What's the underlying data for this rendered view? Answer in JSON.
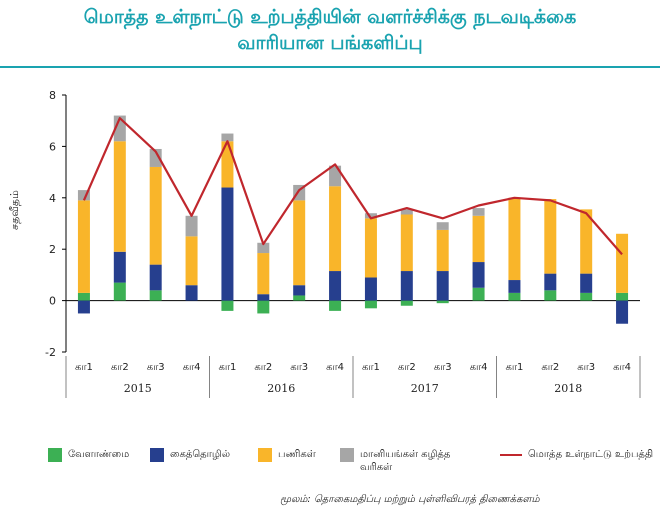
{
  "title_lines": [
    "மொத்த உள்நாட்டு உற்பத்தியின் வளர்ச்சிக்கு நடவடிக்கை",
    "வாரியான பங்களிப்பு"
  ],
  "source": "மூலம்: தொகைமதிப்பு மற்றும் புள்ளிவிபரத் திணைக்களம்",
  "colors": {
    "agriculture": "#3cb054",
    "industry": "#263f8e",
    "services": "#f9b52a",
    "taxes": "#a6a6a6",
    "gdp": "#c0272d",
    "title": "#1aa3b0"
  },
  "chart_data": {
    "type": "bar",
    "stacked": true,
    "ylabel": "சதவீதம்",
    "ylim": [
      -2,
      8
    ],
    "yticks": [
      "-2",
      "0",
      "2",
      "4",
      "6",
      "8"
    ],
    "categories": [
      "கா1",
      "கா2",
      "கா3",
      "கா4",
      "கா1",
      "கா2",
      "கா3",
      "கா4",
      "கா1",
      "கா2",
      "கா3",
      "கா4",
      "கா1",
      "கா2",
      "கா3",
      "கா4"
    ],
    "years": [
      "2015",
      "2016",
      "2017",
      "2018"
    ],
    "series": [
      {
        "name": "வேளாண்மை",
        "key": "agriculture",
        "values": [
          0.3,
          0.7,
          0.4,
          0.0,
          -0.4,
          -0.5,
          0.2,
          -0.4,
          -0.3,
          -0.2,
          -0.1,
          0.5,
          0.3,
          0.4,
          0.3,
          0.3
        ]
      },
      {
        "name": "கைத்தொழில்",
        "key": "industry",
        "values": [
          -0.5,
          1.2,
          1.0,
          0.6,
          4.4,
          0.25,
          0.4,
          1.15,
          0.9,
          1.15,
          1.15,
          1.0,
          0.5,
          0.65,
          0.75,
          -0.9
        ]
      },
      {
        "name": "பணிகள்",
        "key": "services",
        "values": [
          3.6,
          4.3,
          3.8,
          1.9,
          1.8,
          1.6,
          3.3,
          3.3,
          2.3,
          2.2,
          1.6,
          1.8,
          3.2,
          2.9,
          2.5,
          2.3
        ]
      },
      {
        "name": "மானியங்கள் கழித்த வரிகள்",
        "key": "taxes",
        "values": [
          0.4,
          1.0,
          0.7,
          0.8,
          0.3,
          0.4,
          0.6,
          0.8,
          0.2,
          0.2,
          0.3,
          0.3,
          0.0,
          0.0,
          0.0,
          0.0
        ]
      }
    ],
    "line": {
      "name": "மொத்த உள்நாட்டு உற்பத்தி",
      "key": "gdp",
      "values": [
        3.9,
        7.1,
        5.8,
        3.3,
        6.2,
        2.2,
        4.3,
        5.3,
        3.2,
        3.6,
        3.2,
        3.7,
        4.0,
        3.9,
        3.4,
        1.8
      ]
    }
  }
}
